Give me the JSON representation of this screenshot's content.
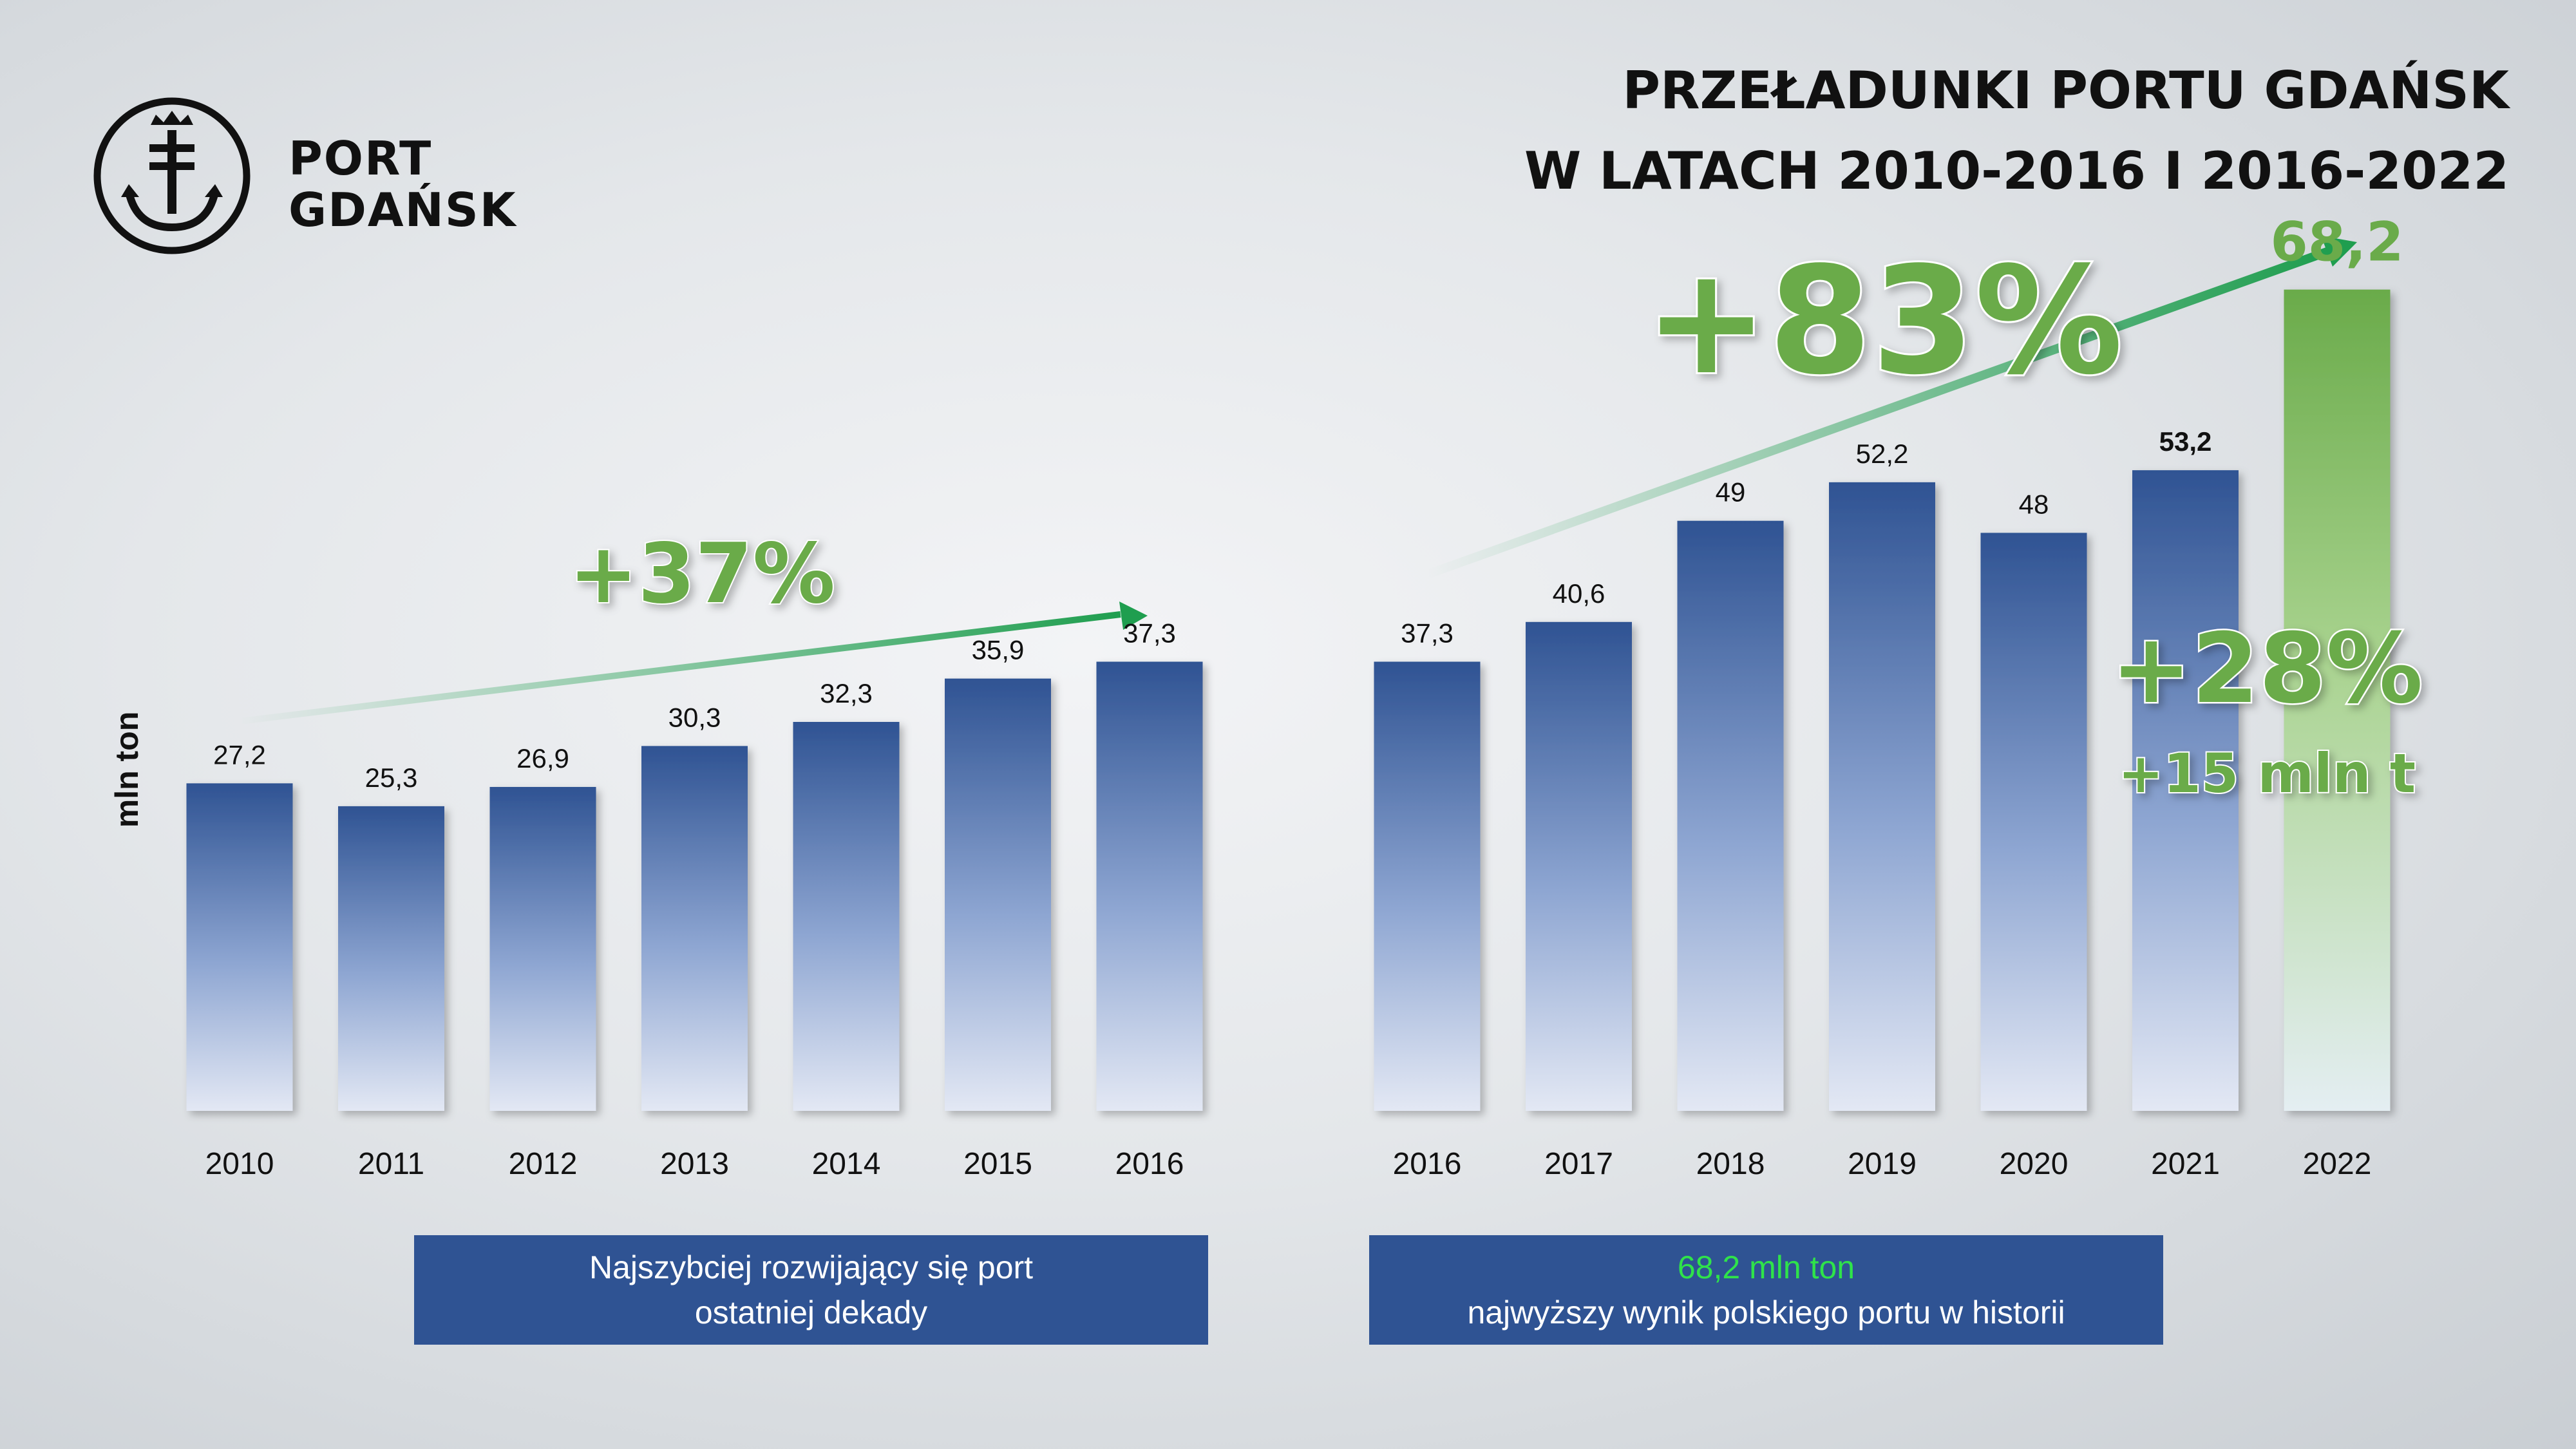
{
  "title": {
    "line1": "PRZEŁADUNKI PORTU GDAŃSK",
    "line2": "W LATACH 2010-2016 I 2016-2022"
  },
  "logo": {
    "line1": "PORT",
    "line2": "GDAŃSK",
    "icon": "port-gdansk-anchor-icon"
  },
  "captions": {
    "left": {
      "line1": "Najszybciej rozwijający się port",
      "line2": "ostatniej dekady"
    },
    "right": {
      "highlight": "68,2 mln ton",
      "line2": "najwyższy wynik polskiego portu w historii"
    }
  },
  "chart_data": [
    {
      "type": "bar",
      "categories": [
        "2010",
        "2011",
        "2012",
        "2013",
        "2014",
        "2015",
        "2016"
      ],
      "values": [
        27.2,
        25.3,
        26.9,
        30.3,
        32.3,
        35.9,
        37.3
      ],
      "value_labels": [
        "27,2",
        "25,3",
        "26,9",
        "30,3",
        "32,3",
        "35,9",
        "37,3"
      ],
      "ylabel": "mln ton",
      "annotations": [
        {
          "text": "+37%"
        }
      ],
      "bar_color": "#2f5393"
    },
    {
      "type": "bar",
      "categories": [
        "2016",
        "2017",
        "2018",
        "2019",
        "2020",
        "2021",
        "2022"
      ],
      "values": [
        37.3,
        40.6,
        49,
        52.2,
        48,
        53.2,
        68.2
      ],
      "value_labels": [
        "37,3",
        "40,6",
        "49",
        "52,2",
        "48",
        "53,2",
        "68,2"
      ],
      "annotations": [
        {
          "text": "+83%"
        },
        {
          "text": "+28%"
        },
        {
          "text": "+15 mln t"
        }
      ],
      "bar_color": "#2f5393",
      "highlight_color": "#6aab4a"
    }
  ]
}
